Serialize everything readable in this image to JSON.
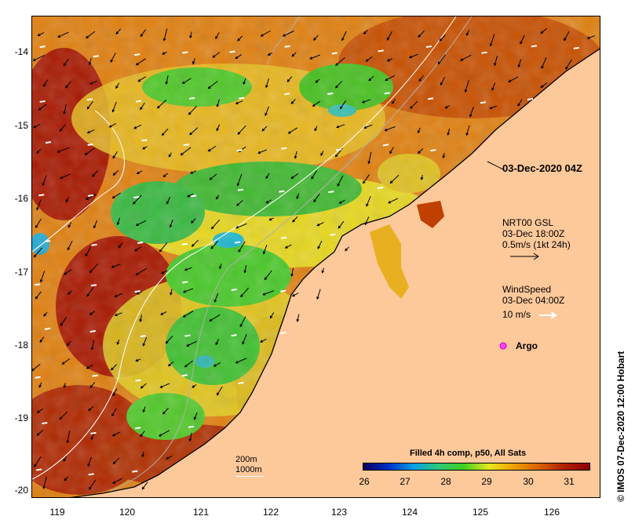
{
  "map": {
    "title_time": "03-Dec-2020 04Z",
    "y_ticks": [
      "-14",
      "-15",
      "-16",
      "-17",
      "-18",
      "-19",
      "-20"
    ],
    "x_ticks": [
      "119",
      "120",
      "121",
      "122",
      "123",
      "124",
      "125",
      "126"
    ],
    "current_legend": {
      "line1": "NRT00 GSL",
      "line2": "03-Dec 18:00Z",
      "line3": "0.5m/s (1kt 24h)"
    },
    "wind_legend": {
      "line1": "WindSpeed",
      "line2": "03-Dec 04:00Z",
      "line3": "10 m/s"
    },
    "argo_label": "Argo",
    "isobath_legend": {
      "line1": "200m",
      "line2": "1000m"
    },
    "colorbar": {
      "title": "Filled 4h comp, p50, All Sats",
      "ticks": [
        "26",
        "27",
        "28",
        "29",
        "30",
        "31"
      ],
      "colors": [
        "#08005c",
        "#0030c8",
        "#00a0e8",
        "#30c878",
        "#40d020",
        "#e8e820",
        "#f0a000",
        "#d86000",
        "#b02000",
        "#900000"
      ]
    },
    "credit": "© IMOS 07-Dec-2020 12:00 Hobart",
    "colors": {
      "land": "#fdc89a",
      "warm": "#c83c00",
      "hot": "#a01000",
      "mid": "#f0a000",
      "yellow": "#e8e020",
      "green": "#48c820",
      "cyan": "#20b8d0"
    }
  }
}
